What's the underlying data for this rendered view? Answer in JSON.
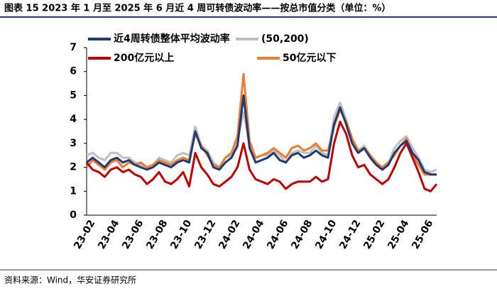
{
  "chart_data": {
    "type": "line",
    "title": "图表 15   2023 年 1 月至 2025 年 6 月近 4 周可转债波动率——按总市值分类（单位：%）",
    "source": "资料来源：Wind，华安证券研究所",
    "categories": [
      null,
      "23-02",
      null,
      null,
      null,
      "23-04",
      null,
      null,
      null,
      "23-06",
      null,
      null,
      null,
      "23-08",
      null,
      null,
      null,
      "23-10",
      null,
      null,
      null,
      "23-12",
      null,
      null,
      null,
      "24-02",
      null,
      null,
      null,
      "24-04",
      null,
      null,
      null,
      "24-06",
      null,
      null,
      null,
      "24-08",
      null,
      null,
      null,
      "24-10",
      null,
      null,
      null,
      "24-12",
      null,
      null,
      null,
      "25-02",
      null,
      null,
      null,
      "25-04",
      null,
      null,
      null,
      "25-06",
      null
    ],
    "series": [
      {
        "name": "近4周转债整体平均波动率",
        "color": "#1f3a73",
        "values": [
          2.2,
          2.4,
          2.2,
          2.0,
          2.3,
          2.4,
          2.2,
          2.3,
          2.1,
          2.0,
          1.9,
          2.0,
          2.2,
          2.1,
          2.0,
          2.2,
          2.3,
          2.2,
          3.5,
          2.8,
          2.6,
          2.0,
          1.9,
          2.2,
          2.4,
          2.9,
          5.0,
          2.8,
          2.2,
          2.3,
          2.4,
          2.6,
          2.3,
          2.2,
          2.5,
          2.6,
          2.4,
          2.5,
          2.7,
          2.5,
          2.4,
          3.8,
          4.5,
          3.8,
          3.0,
          2.6,
          2.8,
          2.4,
          2.1,
          1.9,
          2.1,
          2.6,
          2.9,
          3.1,
          2.6,
          2.3,
          1.8,
          1.7,
          1.7
        ]
      },
      {
        "name": "(50,200)",
        "color": "#bfbfbf",
        "values": [
          2.5,
          2.6,
          2.4,
          2.3,
          2.6,
          2.6,
          2.4,
          2.4,
          2.2,
          2.1,
          2.0,
          2.1,
          2.4,
          2.3,
          2.2,
          2.5,
          2.6,
          2.5,
          3.7,
          2.9,
          2.7,
          2.2,
          2.0,
          2.4,
          2.5,
          3.1,
          4.3,
          2.9,
          2.4,
          2.5,
          2.5,
          2.7,
          2.5,
          2.2,
          2.6,
          2.7,
          2.6,
          2.6,
          2.9,
          2.6,
          2.5,
          4.1,
          4.7,
          4.0,
          3.2,
          2.7,
          2.9,
          2.5,
          2.2,
          2.0,
          2.2,
          2.8,
          3.1,
          3.3,
          2.8,
          2.4,
          1.9,
          1.8,
          1.9
        ]
      },
      {
        "name": "200亿元以上",
        "color": "#c00000",
        "values": [
          2.2,
          1.9,
          1.8,
          1.6,
          1.9,
          2.0,
          1.8,
          1.9,
          1.7,
          1.6,
          1.3,
          1.5,
          1.8,
          1.4,
          1.3,
          1.5,
          1.8,
          1.2,
          2.6,
          2.0,
          1.7,
          1.3,
          1.2,
          1.4,
          1.6,
          2.0,
          3.0,
          1.9,
          1.5,
          1.4,
          1.3,
          1.5,
          1.4,
          1.1,
          1.3,
          1.4,
          1.4,
          1.4,
          1.6,
          1.4,
          1.5,
          3.0,
          3.9,
          3.4,
          2.5,
          2.0,
          2.1,
          1.7,
          1.5,
          1.3,
          1.5,
          2.0,
          2.6,
          3.0,
          2.4,
          1.8,
          1.1,
          1.0,
          1.3
        ]
      },
      {
        "name": "50亿元以下",
        "color": "#ed7d31",
        "values": [
          2.0,
          2.3,
          2.1,
          1.9,
          2.2,
          2.3,
          2.0,
          2.2,
          2.1,
          2.2,
          2.0,
          2.1,
          2.3,
          2.2,
          2.1,
          2.3,
          2.4,
          2.3,
          3.4,
          2.9,
          2.5,
          2.1,
          2.0,
          2.4,
          2.6,
          3.3,
          5.9,
          3.1,
          2.4,
          2.5,
          2.6,
          2.8,
          2.6,
          2.4,
          2.8,
          2.9,
          2.7,
          2.8,
          3.0,
          2.7,
          2.7,
          3.7,
          4.4,
          3.9,
          3.2,
          2.7,
          2.8,
          2.5,
          2.2,
          2.0,
          2.2,
          2.5,
          2.9,
          3.2,
          2.5,
          2.1,
          1.7,
          1.7,
          1.7
        ]
      }
    ],
    "ylim": [
      0,
      7
    ],
    "yticks": [
      0,
      1,
      2,
      3,
      4,
      5,
      6,
      7
    ],
    "grid": false
  }
}
